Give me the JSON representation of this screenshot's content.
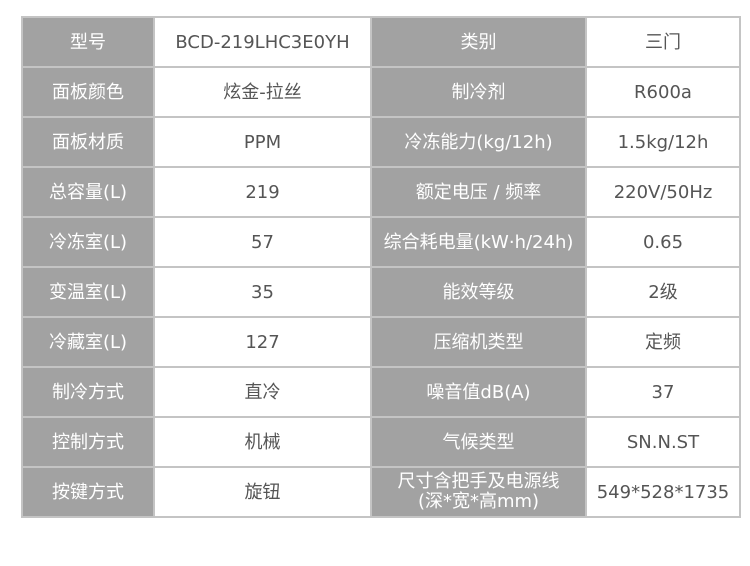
{
  "rows": [
    {
      "k1": "型号",
      "v1": "BCD-219LHC3E0YH",
      "k2": "类别",
      "v2": "三门"
    },
    {
      "k1": "面板颜色",
      "v1": "炫金-拉丝",
      "k2": "制冷剂",
      "v2": "R600a"
    },
    {
      "k1": "面板材质",
      "v1": "PPM",
      "k2": "冷冻能力(kg/12h)",
      "v2": "1.5kg/12h"
    },
    {
      "k1": "总容量(L)",
      "v1": "219",
      "k2": "额定电压 / 频率",
      "v2": "220V/50Hz"
    },
    {
      "k1": "冷冻室(L)",
      "v1": "57",
      "k2": "综合耗电量(kW·h/24h)",
      "v2": "0.65"
    },
    {
      "k1": "变温室(L)",
      "v1": "35",
      "k2": "能效等级",
      "v2": "2级"
    },
    {
      "k1": "冷藏室(L)",
      "v1": "127",
      "k2": "压缩机类型",
      "v2": "定频"
    },
    {
      "k1": "制冷方式",
      "v1": "直冷",
      "k2": "噪音值dB(A)",
      "v2": "37"
    },
    {
      "k1": "控制方式",
      "v1": "机械",
      "k2": "气候类型",
      "v2": "SN.N.ST"
    },
    {
      "k1": "按键方式",
      "v1": "旋钮",
      "k2": "尺寸含把手及电源线\n(深*宽*高mm)",
      "v2": "549*528*1735"
    }
  ]
}
